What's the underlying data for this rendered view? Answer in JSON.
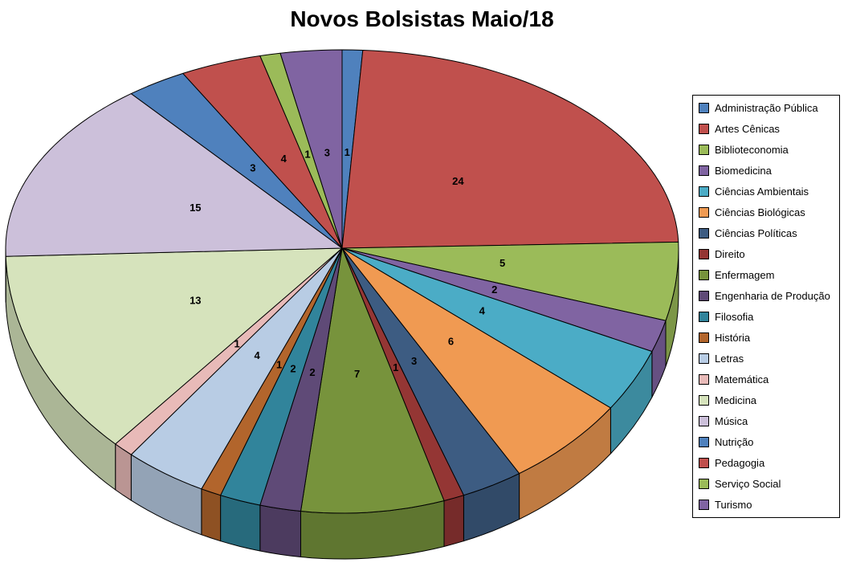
{
  "chart_data": {
    "type": "pie",
    "style": "3d",
    "title": "Novos Bolsistas Maio/18",
    "legend_position": "right",
    "data_labels": "value",
    "start_angle_deg": 0,
    "direction": "clockwise",
    "total": 102,
    "categories": [
      "Administração Pública",
      "Artes Cênicas",
      "Biblioteconomia",
      "Biomedicina",
      "Ciências Ambientais",
      "Ciências Biológicas",
      "Ciências Políticas",
      "Direito",
      "Enfermagem",
      "Engenharia de Produção",
      "Filosofia",
      "História",
      "Letras",
      "Matemática",
      "Medicina",
      "Música",
      "Nutrição",
      "Pedagogia",
      "Serviço Social",
      "Turismo"
    ],
    "values": [
      1,
      24,
      5,
      2,
      4,
      6,
      3,
      1,
      7,
      2,
      2,
      1,
      4,
      1,
      13,
      15,
      3,
      4,
      1,
      3
    ],
    "colors": [
      "#4F81BD",
      "#C0504D",
      "#9BBB59",
      "#8064A2",
      "#4BACC6",
      "#F09A52",
      "#3D5C82",
      "#943634",
      "#77933C",
      "#5F4A77",
      "#31849B",
      "#B2652C",
      "#B8CCE4",
      "#E8BAB8",
      "#D6E3BC",
      "#CCC0DA",
      "#4F81BD",
      "#C0504D",
      "#9BBB59",
      "#8064A2"
    ]
  }
}
